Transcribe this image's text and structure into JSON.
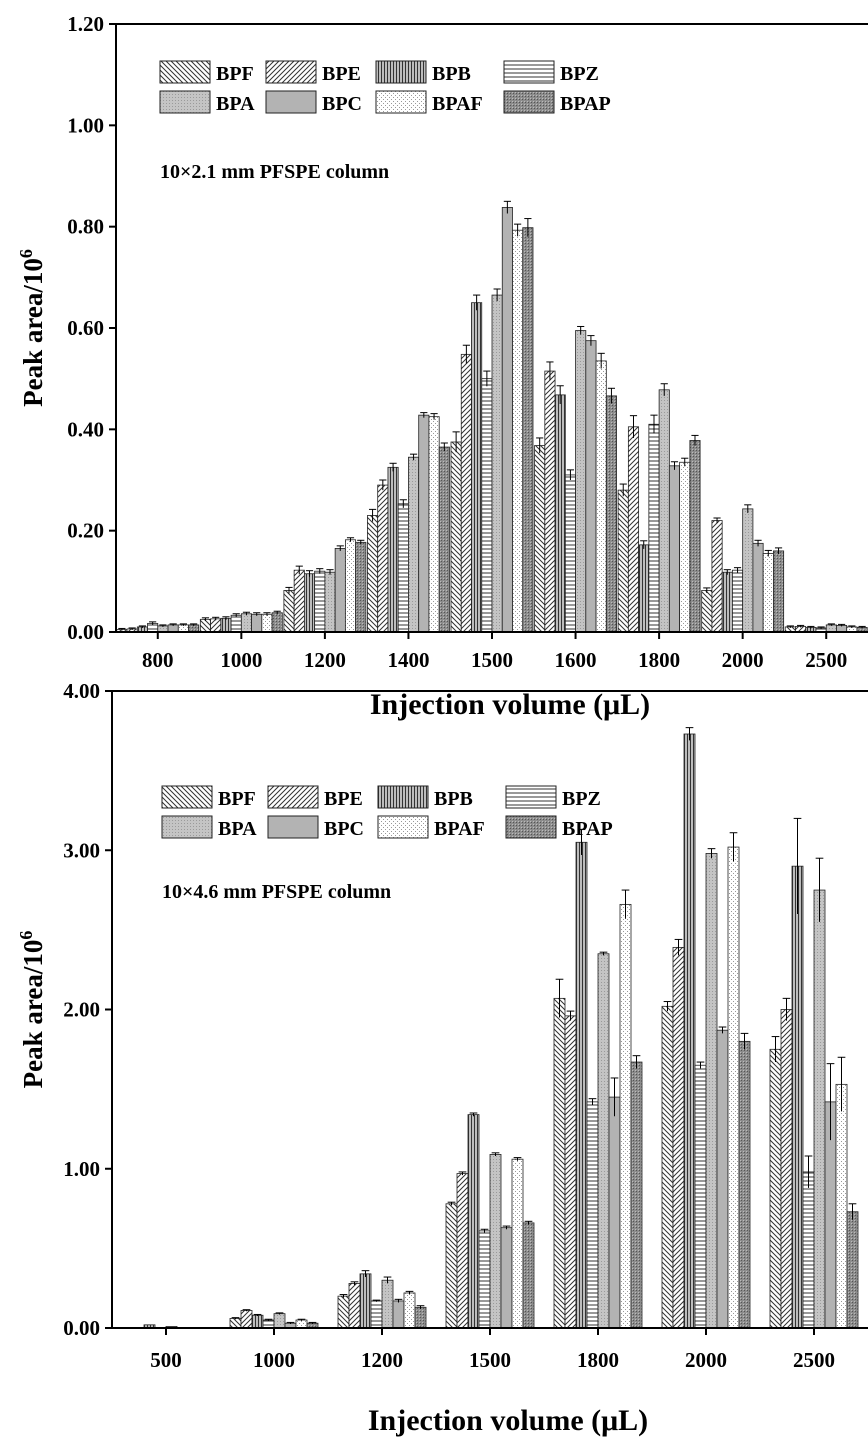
{
  "patterns": {
    "BPF": "diag-back",
    "BPE": "diag-fwd",
    "BPB": "vertical",
    "BPZ": "horizontal",
    "BPA": "dots",
    "BPC": "solid-gray",
    "BPAF": "light-dots",
    "BPAP": "dense-dots"
  },
  "chart_data": [
    {
      "type": "bar",
      "annotation": "10×2.1 mm PFSPE column",
      "xlabel": "Injection volume (μL)",
      "ylabel": "Peak area/10",
      "ylabel_sup": "6",
      "ylim": [
        0,
        1.2
      ],
      "yticks": [
        "0.00",
        "0.20",
        "0.40",
        "0.60",
        "0.80",
        "1.00",
        "1.20"
      ],
      "grid": false,
      "legend": [
        "BPF",
        "BPE",
        "BPB",
        "BPZ",
        "BPA",
        "BPC",
        "BPAF",
        "BPAP"
      ],
      "legend_placement": "top-left",
      "categories": [
        "800",
        "1000",
        "1200",
        "1400",
        "1500",
        "1600",
        "1800",
        "2000",
        "2500"
      ],
      "series": [
        {
          "name": "BPF",
          "values": [
            0.005,
            0.025,
            0.082,
            0.23,
            0.375,
            0.368,
            0.28,
            0.082,
            0.01
          ],
          "errors": [
            0.002,
            0.003,
            0.006,
            0.012,
            0.02,
            0.015,
            0.012,
            0.005,
            0.002
          ]
        },
        {
          "name": "BPE",
          "values": [
            0.006,
            0.026,
            0.122,
            0.29,
            0.548,
            0.515,
            0.405,
            0.22,
            0.011
          ],
          "errors": [
            0.002,
            0.003,
            0.008,
            0.01,
            0.018,
            0.018,
            0.022,
            0.005,
            0.002
          ]
        },
        {
          "name": "BPB",
          "values": [
            0.01,
            0.027,
            0.115,
            0.325,
            0.65,
            0.468,
            0.172,
            0.118,
            0.009
          ],
          "errors": [
            0.002,
            0.003,
            0.006,
            0.008,
            0.015,
            0.018,
            0.008,
            0.005,
            0.002
          ]
        },
        {
          "name": "BPZ",
          "values": [
            0.017,
            0.033,
            0.12,
            0.253,
            0.5,
            0.31,
            0.41,
            0.122,
            0.008
          ],
          "errors": [
            0.003,
            0.003,
            0.005,
            0.008,
            0.015,
            0.01,
            0.018,
            0.005,
            0.002
          ]
        },
        {
          "name": "BPA",
          "values": [
            0.012,
            0.036,
            0.118,
            0.345,
            0.665,
            0.595,
            0.478,
            0.243,
            0.014
          ],
          "errors": [
            0.002,
            0.003,
            0.005,
            0.006,
            0.012,
            0.008,
            0.012,
            0.008,
            0.002
          ]
        },
        {
          "name": "BPC",
          "values": [
            0.014,
            0.035,
            0.165,
            0.428,
            0.838,
            0.575,
            0.328,
            0.175,
            0.013
          ],
          "errors": [
            0.002,
            0.003,
            0.005,
            0.005,
            0.012,
            0.01,
            0.008,
            0.006,
            0.002
          ]
        },
        {
          "name": "BPAF",
          "values": [
            0.014,
            0.035,
            0.182,
            0.425,
            0.793,
            0.535,
            0.335,
            0.155,
            0.01
          ],
          "errors": [
            0.002,
            0.003,
            0.004,
            0.006,
            0.012,
            0.015,
            0.008,
            0.006,
            0.002
          ]
        },
        {
          "name": "BPAP",
          "values": [
            0.014,
            0.038,
            0.177,
            0.365,
            0.798,
            0.466,
            0.378,
            0.16,
            0.009
          ],
          "errors": [
            0.002,
            0.003,
            0.004,
            0.008,
            0.018,
            0.015,
            0.01,
            0.006,
            0.002
          ]
        }
      ]
    },
    {
      "type": "bar",
      "annotation": "10×4.6 mm PFSPE column",
      "xlabel": "Injection volume (μL)",
      "ylabel": "Peak area/10",
      "ylabel_sup": "6",
      "ylim": [
        0,
        4.0
      ],
      "yticks": [
        "0.00",
        "1.00",
        "2.00",
        "3.00",
        "4.00"
      ],
      "grid": false,
      "legend": [
        "BPF",
        "BPE",
        "BPB",
        "BPZ",
        "BPA",
        "BPC",
        "BPAF",
        "BPAP"
      ],
      "legend_placement": "top-left",
      "categories": [
        "500",
        "1000",
        "1200",
        "1500",
        "1800",
        "2000",
        "2500"
      ],
      "series": [
        {
          "name": "BPF",
          "values": [
            0.0,
            0.06,
            0.2,
            0.78,
            2.07,
            2.02,
            1.75
          ],
          "errors": [
            0.0,
            0.005,
            0.01,
            0.01,
            0.12,
            0.03,
            0.08
          ]
        },
        {
          "name": "BPE",
          "values": [
            0.0,
            0.11,
            0.28,
            0.97,
            1.96,
            2.39,
            2.0
          ],
          "errors": [
            0.0,
            0.005,
            0.01,
            0.01,
            0.03,
            0.05,
            0.07
          ]
        },
        {
          "name": "BPB",
          "values": [
            0.02,
            0.08,
            0.34,
            1.34,
            3.05,
            3.73,
            2.9
          ],
          "errors": [
            0.0,
            0.005,
            0.02,
            0.01,
            0.08,
            0.04,
            0.3
          ]
        },
        {
          "name": "BPZ",
          "values": [
            0.0,
            0.05,
            0.17,
            0.61,
            1.42,
            1.65,
            0.98
          ],
          "errors": [
            0.0,
            0.005,
            0.005,
            0.01,
            0.02,
            0.02,
            0.1
          ]
        },
        {
          "name": "BPA",
          "values": [
            0.01,
            0.09,
            0.3,
            1.09,
            2.35,
            2.98,
            2.75
          ],
          "errors": [
            0.0,
            0.005,
            0.02,
            0.01,
            0.01,
            0.03,
            0.2
          ]
        },
        {
          "name": "BPC",
          "values": [
            0.0,
            0.03,
            0.17,
            0.63,
            1.45,
            1.87,
            1.42
          ],
          "errors": [
            0.0,
            0.005,
            0.01,
            0.01,
            0.12,
            0.02,
            0.24
          ]
        },
        {
          "name": "BPAF",
          "values": [
            0.0,
            0.05,
            0.22,
            1.06,
            2.66,
            3.02,
            1.53
          ],
          "errors": [
            0.0,
            0.005,
            0.01,
            0.01,
            0.09,
            0.09,
            0.17
          ]
        },
        {
          "name": "BPAP",
          "values": [
            0.0,
            0.03,
            0.13,
            0.66,
            1.67,
            1.8,
            0.73
          ],
          "errors": [
            0.0,
            0.005,
            0.01,
            0.01,
            0.04,
            0.05,
            0.05
          ]
        }
      ]
    }
  ]
}
